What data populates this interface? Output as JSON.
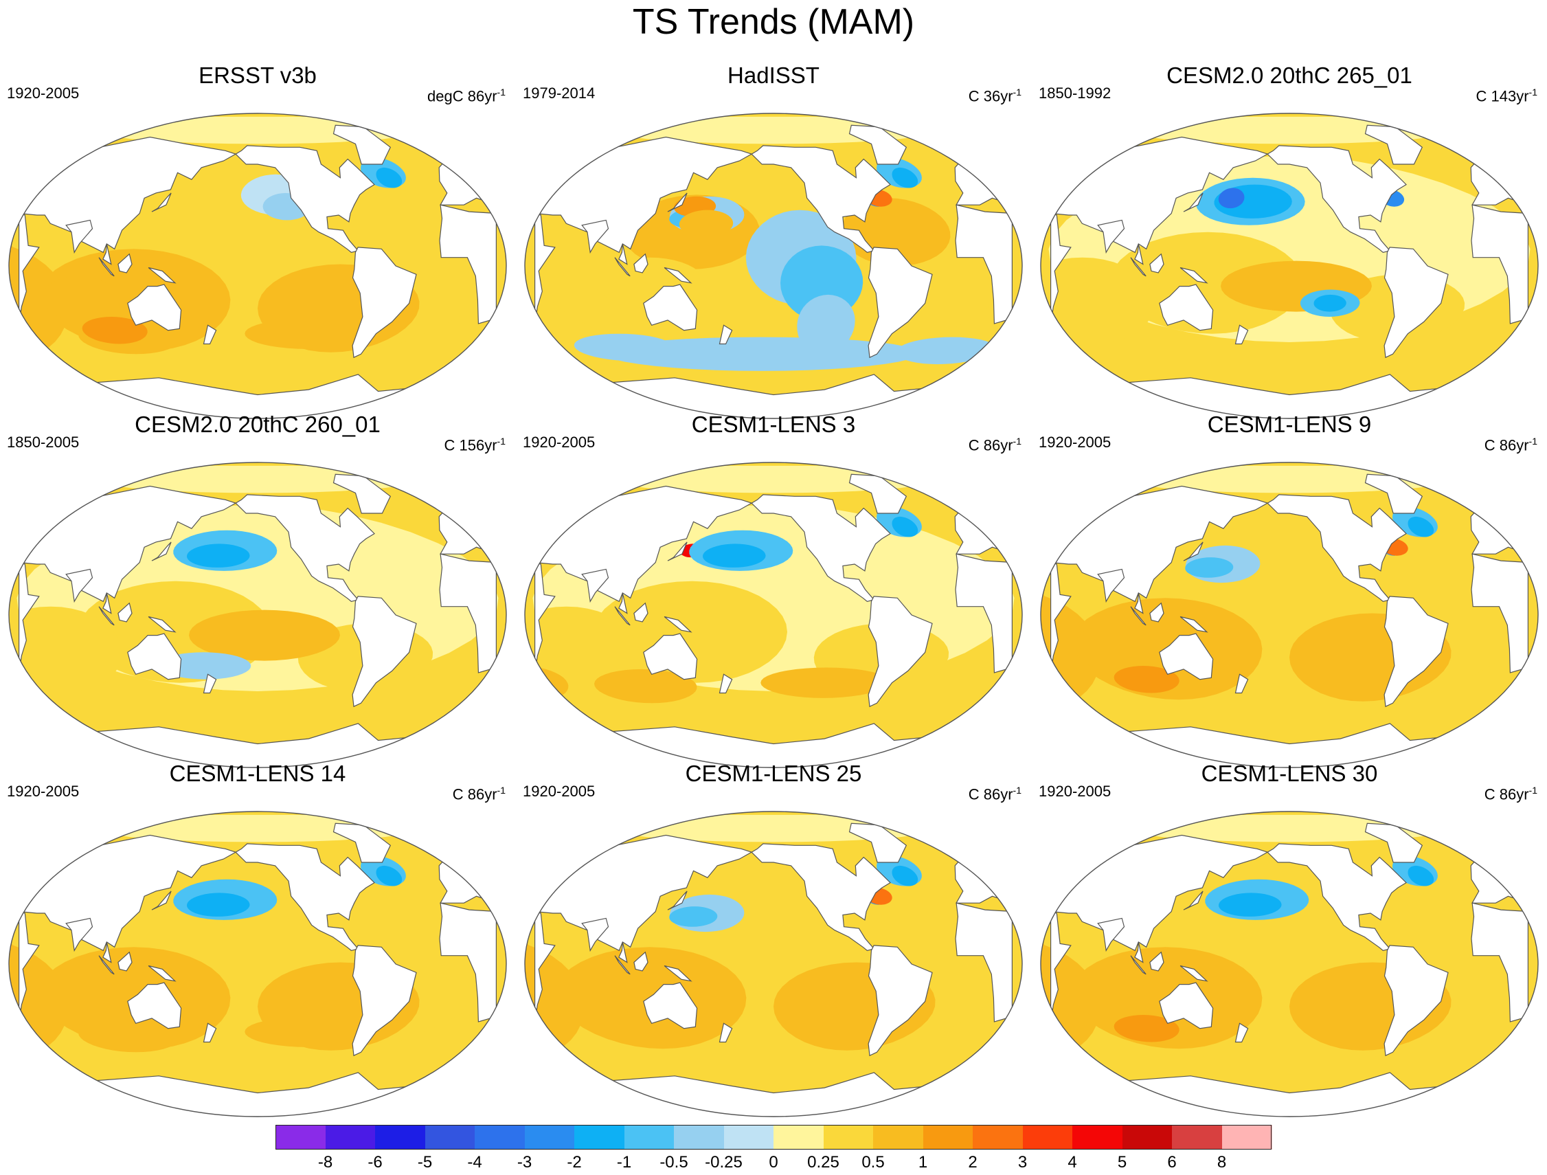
{
  "title": "TS Trends (MAM)",
  "panels": [
    {
      "title": "ERSST v3b",
      "period": "1920-2005",
      "units_prefix": "degC 86yr",
      "units_exp": "-1",
      "profile": {
        "base": "warm",
        "cold": [
          "npac-east",
          "natl-subpolar"
        ],
        "hot": [
          "southern",
          "indian"
        ]
      }
    },
    {
      "title": "HadISST",
      "period": "1979-2014",
      "units_prefix": "C 36yr",
      "units_exp": "-1",
      "profile": {
        "base": "mixed",
        "cold": [
          "epac-wedge",
          "southern-ocean",
          "natl-subpolar"
        ],
        "hot": [
          "npac-west",
          "natl-gulf"
        ]
      }
    },
    {
      "title": "CESM2.0 20thC 265_01",
      "period": "1850-1992",
      "units_prefix": "C 143yr",
      "units_exp": "-1",
      "profile": {
        "base": "pale",
        "cold": [
          "npac-central-strong",
          "spac-eastern",
          "natl-gulf"
        ],
        "hot": [
          "spac-central"
        ]
      }
    },
    {
      "title": "CESM2.0 20thC 260_01",
      "period": "1850-2005",
      "units_prefix": "C 156yr",
      "units_exp": "-1",
      "profile": {
        "base": "pale",
        "cold": [
          "npac-central",
          "spac-west"
        ],
        "hot": [
          "spac-central"
        ]
      }
    },
    {
      "title": "CESM1-LENS 3",
      "period": "1920-2005",
      "units_prefix": "C 86yr",
      "units_exp": "-1",
      "profile": {
        "base": "pale",
        "cold": [
          "npac-central",
          "natl-subpolar"
        ],
        "hot": [
          "kuroshio",
          "southern"
        ]
      }
    },
    {
      "title": "CESM1-LENS 9",
      "period": "1920-2005",
      "units_prefix": "C 86yr",
      "units_exp": "-1",
      "profile": {
        "base": "warm",
        "cold": [
          "natl-subpolar",
          "npac-west"
        ],
        "hot": [
          "indian",
          "natl-gulf"
        ]
      }
    },
    {
      "title": "CESM1-LENS 14",
      "period": "1920-2005",
      "units_prefix": "C 86yr",
      "units_exp": "-1",
      "profile": {
        "base": "warm",
        "cold": [
          "natl-subpolar",
          "npac-central"
        ],
        "hot": [
          "southern"
        ]
      }
    },
    {
      "title": "CESM1-LENS 25",
      "period": "1920-2005",
      "units_prefix": "C 86yr",
      "units_exp": "-1",
      "profile": {
        "base": "warm",
        "cold": [
          "npac-west",
          "natl-subpolar"
        ],
        "hot": [
          "natl-gulf"
        ]
      }
    },
    {
      "title": "CESM1-LENS 30",
      "period": "1920-2005",
      "units_prefix": "C 86yr",
      "units_exp": "-1",
      "profile": {
        "base": "warm",
        "cold": [
          "npac-central",
          "natl-subpolar"
        ],
        "hot": [
          "indian"
        ]
      }
    }
  ],
  "colorbar": {
    "levels": [
      "-8",
      "-6",
      "-5",
      "-4",
      "-3",
      "-2",
      "-1",
      "-0.5",
      "-0.25",
      "0",
      "0.25",
      "0.5",
      "1",
      "2",
      "3",
      "4",
      "5",
      "6",
      "8"
    ],
    "colors": [
      "#8a2be8",
      "#4b1be6",
      "#1d1ee6",
      "#3355e0",
      "#2d72ec",
      "#2a8cf0",
      "#0eb0f4",
      "#4bc2f4",
      "#96d0f0",
      "#bfe2f4",
      "#fff59c",
      "#fad83a",
      "#f8bc20",
      "#f89a10",
      "#fb7310",
      "#fc3d0a",
      "#f40606",
      "#c90808",
      "#d84040",
      "#ffb4b4"
    ]
  }
}
